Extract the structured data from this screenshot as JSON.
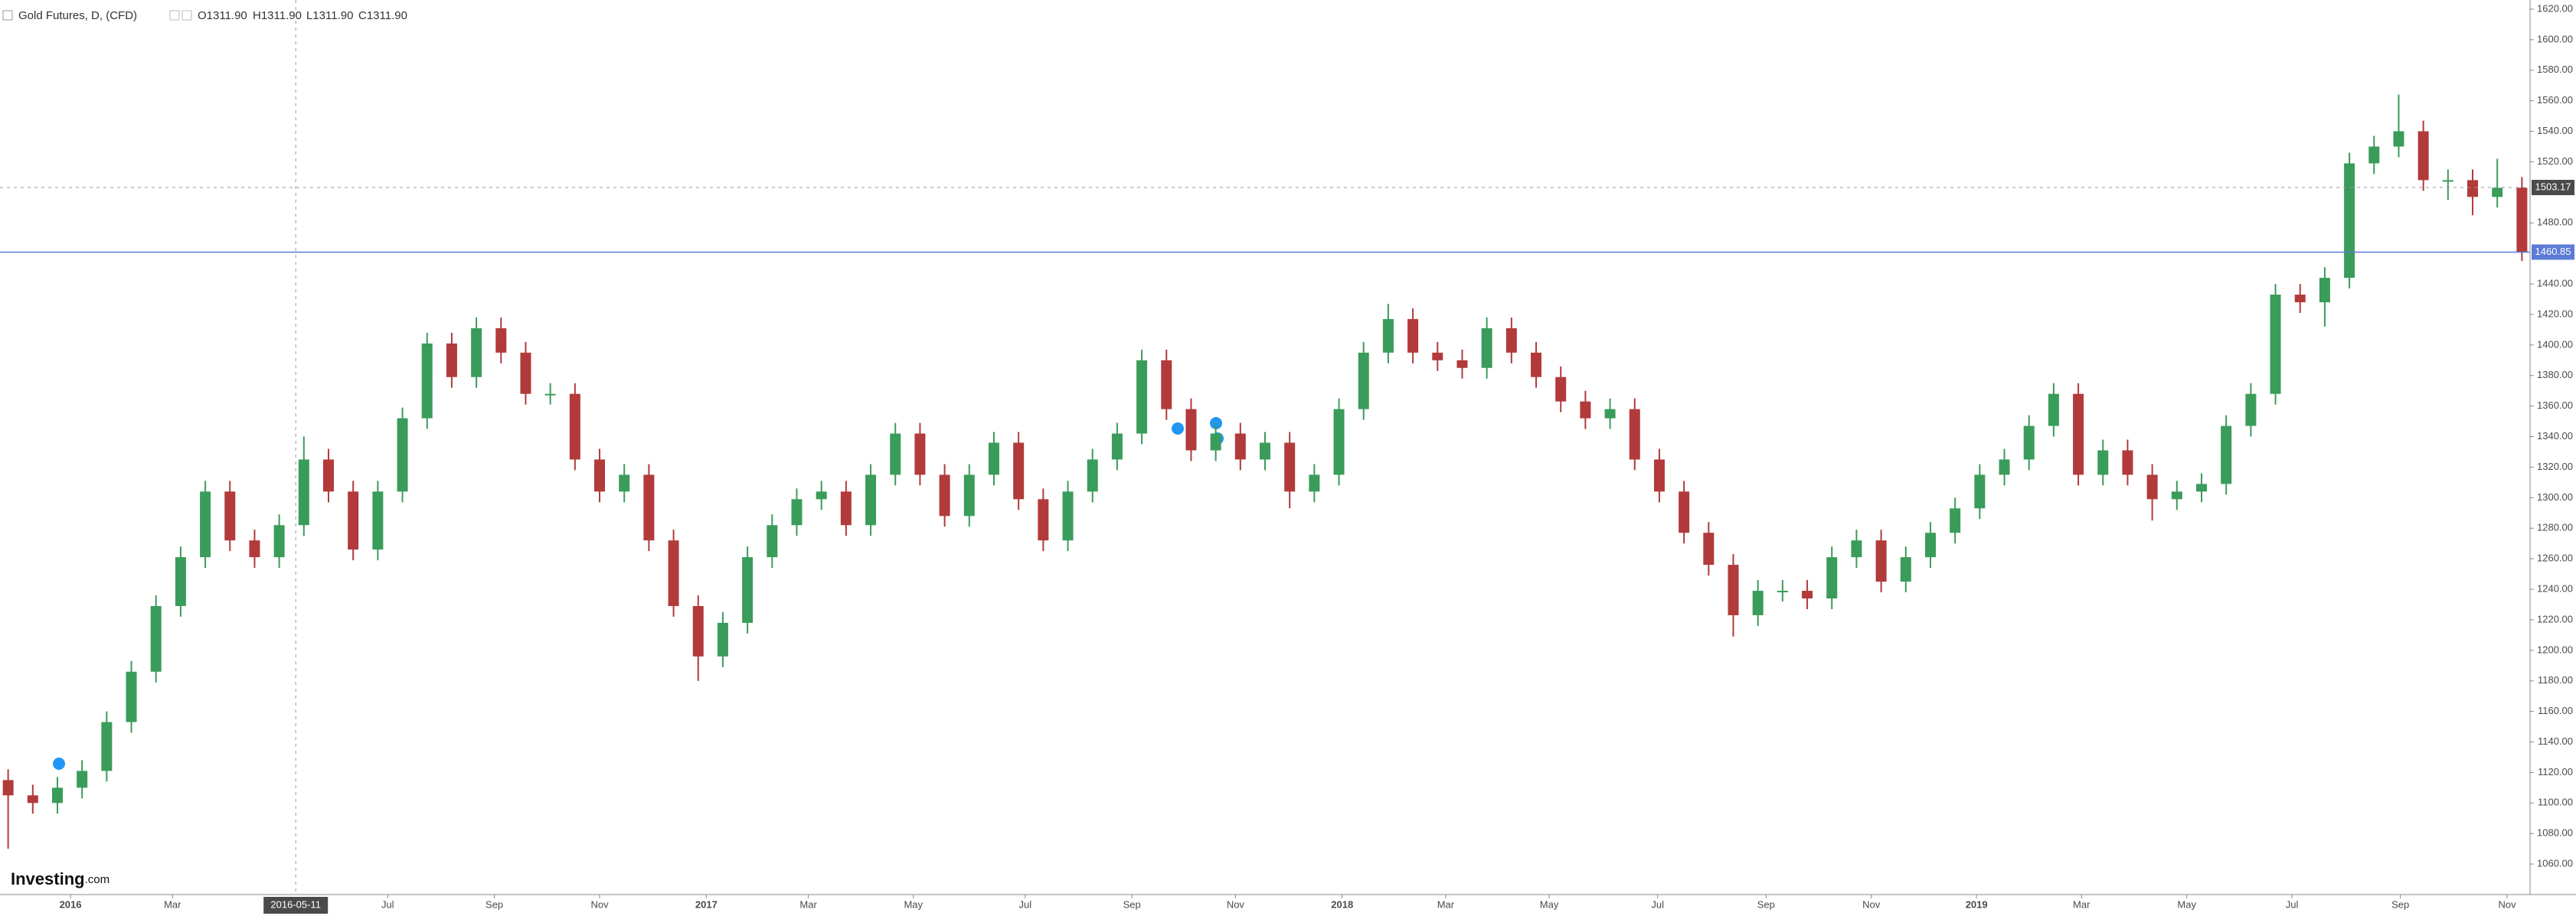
{
  "chart_data": {
    "type": "candlestick",
    "title": "Gold Futures, D, (CFD)",
    "ohlc_legend": [
      "O1311.90",
      "H1311.90",
      "L1311.90",
      "C1311.90"
    ],
    "logo": [
      "Investing",
      ".com"
    ],
    "up_color": "#3a9c5a",
    "down_color": "#b23a3a",
    "grid": false,
    "xlim": [
      -0.33,
      102.33
    ],
    "ylim": [
      1040,
      1626
    ],
    "xticks": [
      {
        "value": 2.53,
        "label": "2016"
      },
      {
        "value": 6.67,
        "label": "Mar"
      },
      {
        "value": 15.4,
        "label": "Jul"
      },
      {
        "value": 19.73,
        "label": "Sep"
      },
      {
        "value": 24,
        "label": "Nov"
      },
      {
        "value": 28.33,
        "label": "2017"
      },
      {
        "value": 32.47,
        "label": "Mar"
      },
      {
        "value": 36.73,
        "label": "May"
      },
      {
        "value": 41.27,
        "label": "Jul"
      },
      {
        "value": 45.6,
        "label": "Sep"
      },
      {
        "value": 49.8,
        "label": "Nov"
      },
      {
        "value": 54.13,
        "label": "2018"
      },
      {
        "value": 58.33,
        "label": "Mar"
      },
      {
        "value": 62.53,
        "label": "May"
      },
      {
        "value": 66.93,
        "label": "Jul"
      },
      {
        "value": 71.33,
        "label": "Sep"
      },
      {
        "value": 75.6,
        "label": "Nov"
      },
      {
        "value": 79.87,
        "label": "2019"
      },
      {
        "value": 84.13,
        "label": "Mar"
      },
      {
        "value": 88.4,
        "label": "May"
      },
      {
        "value": 92.67,
        "label": "Jul"
      },
      {
        "value": 97.07,
        "label": "Sep"
      },
      {
        "value": 101.4,
        "label": "Nov"
      }
    ],
    "year_ticks": [
      "2016",
      "2017",
      "2018",
      "2019"
    ],
    "yticks": [
      {
        "value": 1060,
        "label": "1060.00"
      },
      {
        "value": 1080,
        "label": "1080.00"
      },
      {
        "value": 1100,
        "label": "1100.00"
      },
      {
        "value": 1120,
        "label": "1120.00"
      },
      {
        "value": 1140,
        "label": "1140.00"
      },
      {
        "value": 1160,
        "label": "1160.00"
      },
      {
        "value": 1180,
        "label": "1180.00"
      },
      {
        "value": 1200,
        "label": "1200.00"
      },
      {
        "value": 1220,
        "label": "1220.00"
      },
      {
        "value": 1240,
        "label": "1240.00"
      },
      {
        "value": 1260,
        "label": "1260.00"
      },
      {
        "value": 1280,
        "label": "1280.00"
      },
      {
        "value": 1300,
        "label": "1300.00"
      },
      {
        "value": 1320,
        "label": "1320.00"
      },
      {
        "value": 1340,
        "label": "1340.00"
      },
      {
        "value": 1360,
        "label": "1360.00"
      },
      {
        "value": 1380,
        "label": "1380.00"
      },
      {
        "value": 1400,
        "label": "1400.00"
      },
      {
        "value": 1420,
        "label": "1420.00"
      },
      {
        "value": 1440,
        "label": "1440.00"
      },
      {
        "value": 1480,
        "label": "1480.00"
      },
      {
        "value": 1520,
        "label": "1520.00"
      },
      {
        "value": 1540,
        "label": "1540.00"
      },
      {
        "value": 1560,
        "label": "1560.00"
      },
      {
        "value": 1580,
        "label": "1580.00"
      },
      {
        "value": 1600,
        "label": "1600.00"
      },
      {
        "value": 1620,
        "label": "1620.00"
      }
    ],
    "price_line": {
      "value": 1460.85,
      "label": "1460.85",
      "color": "#5b7bd5"
    },
    "crosshair": {
      "x": 11.67,
      "x_label": "2016-05-11",
      "y": 1503.17,
      "y_label": "1503.17"
    },
    "open": [
      1115,
      1105,
      1100,
      1110,
      1121,
      1153,
      1186,
      1229,
      1261,
      1304,
      1272,
      1261,
      1282,
      1325,
      1304,
      1266,
      1304,
      1352,
      1401,
      1379,
      1411,
      1395,
      1368,
      1368,
      1325,
      1304,
      1315,
      1272,
      1229,
      1196,
      1218,
      1261,
      1282,
      1299,
      1304,
      1282,
      1315,
      1342,
      1315,
      1288,
      1315,
      1336,
      1299,
      1272,
      1304,
      1325,
      1342,
      1390,
      1358,
      1331,
      1342,
      1325,
      1336,
      1304,
      1315,
      1358,
      1395,
      1417,
      1395,
      1390,
      1385,
      1411,
      1395,
      1379,
      1363,
      1352,
      1358,
      1325,
      1304,
      1277,
      1256,
      1223,
      1239,
      1239,
      1234,
      1261,
      1272,
      1245,
      1261,
      1277,
      1293,
      1315,
      1325,
      1347,
      1368,
      1315,
      1331,
      1315,
      1299,
      1304,
      1309,
      1347,
      1368,
      1433,
      1428,
      1444,
      1519,
      1530,
      1540,
      1508,
      1508,
      1497,
      1503
    ],
    "high": [
      1122,
      1112,
      1117,
      1128,
      1160,
      1193,
      1236,
      1268,
      1311,
      1311,
      1279,
      1289,
      1340,
      1332,
      1311,
      1311,
      1359,
      1408,
      1408,
      1418,
      1418,
      1402,
      1375,
      1375,
      1332,
      1322,
      1322,
      1279,
      1236,
      1225,
      1268,
      1289,
      1306,
      1311,
      1311,
      1322,
      1349,
      1349,
      1322,
      1322,
      1343,
      1343,
      1306,
      1311,
      1332,
      1349,
      1397,
      1397,
      1365,
      1349,
      1349,
      1343,
      1343,
      1322,
      1365,
      1402,
      1427,
      1424,
      1402,
      1397,
      1418,
      1418,
      1402,
      1386,
      1370,
      1365,
      1365,
      1332,
      1311,
      1284,
      1263,
      1246,
      1246,
      1246,
      1268,
      1279,
      1279,
      1268,
      1284,
      1300,
      1322,
      1332,
      1354,
      1375,
      1375,
      1338,
      1338,
      1322,
      1311,
      1316,
      1354,
      1375,
      1440,
      1440,
      1451,
      1526,
      1537,
      1564,
      1547,
      1515,
      1515,
      1522,
      1510
    ],
    "low": [
      1070,
      1093,
      1093,
      1103,
      1114,
      1146,
      1179,
      1222,
      1254,
      1265,
      1254,
      1254,
      1275,
      1297,
      1259,
      1259,
      1297,
      1345,
      1372,
      1372,
      1388,
      1361,
      1361,
      1318,
      1297,
      1297,
      1265,
      1222,
      1180,
      1189,
      1211,
      1254,
      1275,
      1292,
      1275,
      1275,
      1308,
      1308,
      1281,
      1281,
      1308,
      1292,
      1265,
      1265,
      1297,
      1318,
      1335,
      1351,
      1324,
      1324,
      1318,
      1318,
      1293,
      1297,
      1308,
      1351,
      1388,
      1388,
      1383,
      1378,
      1378,
      1388,
      1372,
      1356,
      1345,
      1345,
      1318,
      1297,
      1270,
      1249,
      1209,
      1216,
      1232,
      1227,
      1227,
      1254,
      1238,
      1238,
      1254,
      1270,
      1286,
      1308,
      1318,
      1340,
      1308,
      1308,
      1308,
      1285,
      1292,
      1297,
      1302,
      1340,
      1361,
      1421,
      1412,
      1437,
      1512,
      1523,
      1501,
      1495,
      1485,
      1490,
      1455
    ],
    "close": [
      1105,
      1100,
      1110,
      1121,
      1153,
      1186,
      1229,
      1261,
      1304,
      1272,
      1261,
      1282,
      1325,
      1304,
      1266,
      1304,
      1352,
      1401,
      1379,
      1411,
      1395,
      1368,
      1368,
      1325,
      1304,
      1315,
      1272,
      1229,
      1196,
      1218,
      1261,
      1282,
      1299,
      1304,
      1282,
      1315,
      1342,
      1315,
      1288,
      1315,
      1336,
      1299,
      1272,
      1304,
      1325,
      1342,
      1390,
      1358,
      1331,
      1342,
      1325,
      1336,
      1304,
      1315,
      1358,
      1395,
      1417,
      1395,
      1390,
      1385,
      1411,
      1395,
      1379,
      1363,
      1352,
      1358,
      1325,
      1304,
      1277,
      1256,
      1223,
      1239,
      1239,
      1234,
      1261,
      1272,
      1245,
      1261,
      1277,
      1293,
      1315,
      1325,
      1347,
      1368,
      1315,
      1331,
      1315,
      1299,
      1304,
      1309,
      1347,
      1368,
      1433,
      1428,
      1444,
      1519,
      1530,
      1540,
      1508,
      1508,
      1497,
      1503,
      1460.85
    ]
  }
}
